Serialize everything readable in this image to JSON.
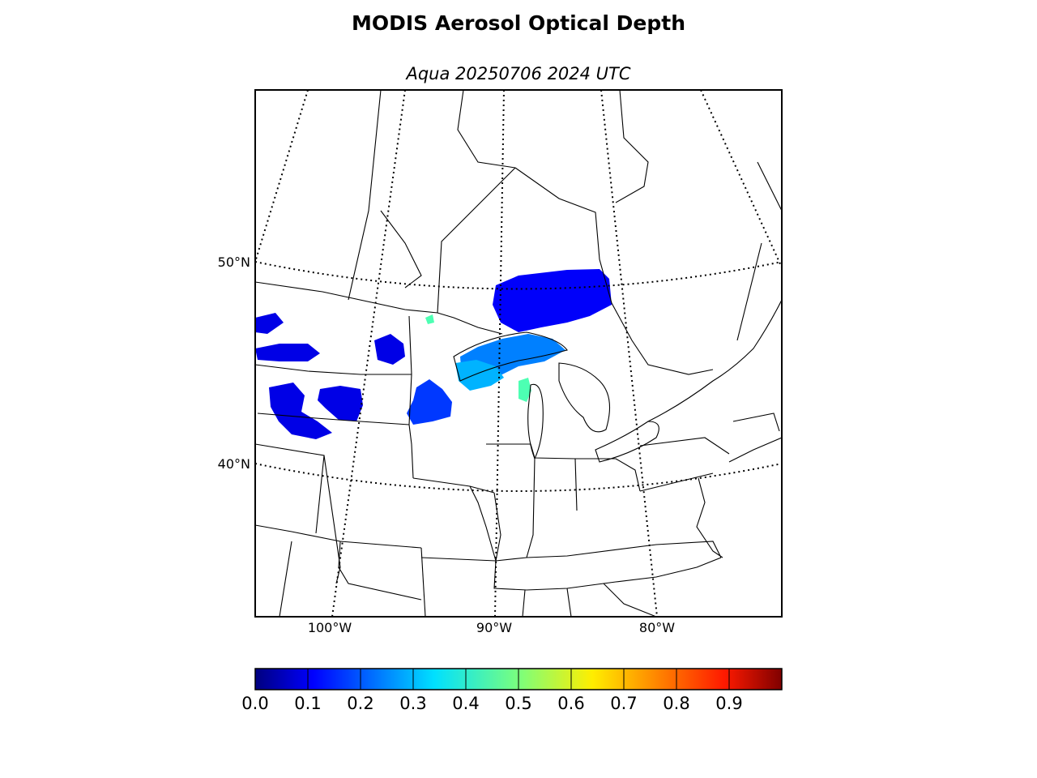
{
  "figure": {
    "title": "MODIS Aerosol Optical Depth",
    "subtitle": "Aqua 20250706 2024 UTC"
  },
  "map": {
    "parallel_labels": [
      "50°N",
      "40°N"
    ],
    "meridian_labels": [
      "100°W",
      "90°W",
      "80°W"
    ],
    "colors": {
      "land_line": "#000000",
      "frame": "#000000",
      "background": "#ffffff"
    }
  },
  "colorbar": {
    "colormap": "jet",
    "min": 0.0,
    "max": 1.0,
    "tick_labels": [
      "0.0",
      "0.1",
      "0.2",
      "0.3",
      "0.4",
      "0.5",
      "0.6",
      "0.7",
      "0.8",
      "0.9"
    ]
  },
  "aerosol_patches": [
    {
      "region": "northwestern-ontario",
      "aod": 0.12
    },
    {
      "region": "lake-superior",
      "aod": 0.25
    },
    {
      "region": "north-dakota",
      "aod": 0.1
    },
    {
      "region": "south-dakota",
      "aod": 0.1
    },
    {
      "region": "minnesota",
      "aod": 0.18
    },
    {
      "region": "wisconsin",
      "aod": 0.3
    },
    {
      "region": "lake-michigan-shore",
      "aod": 0.45
    }
  ]
}
